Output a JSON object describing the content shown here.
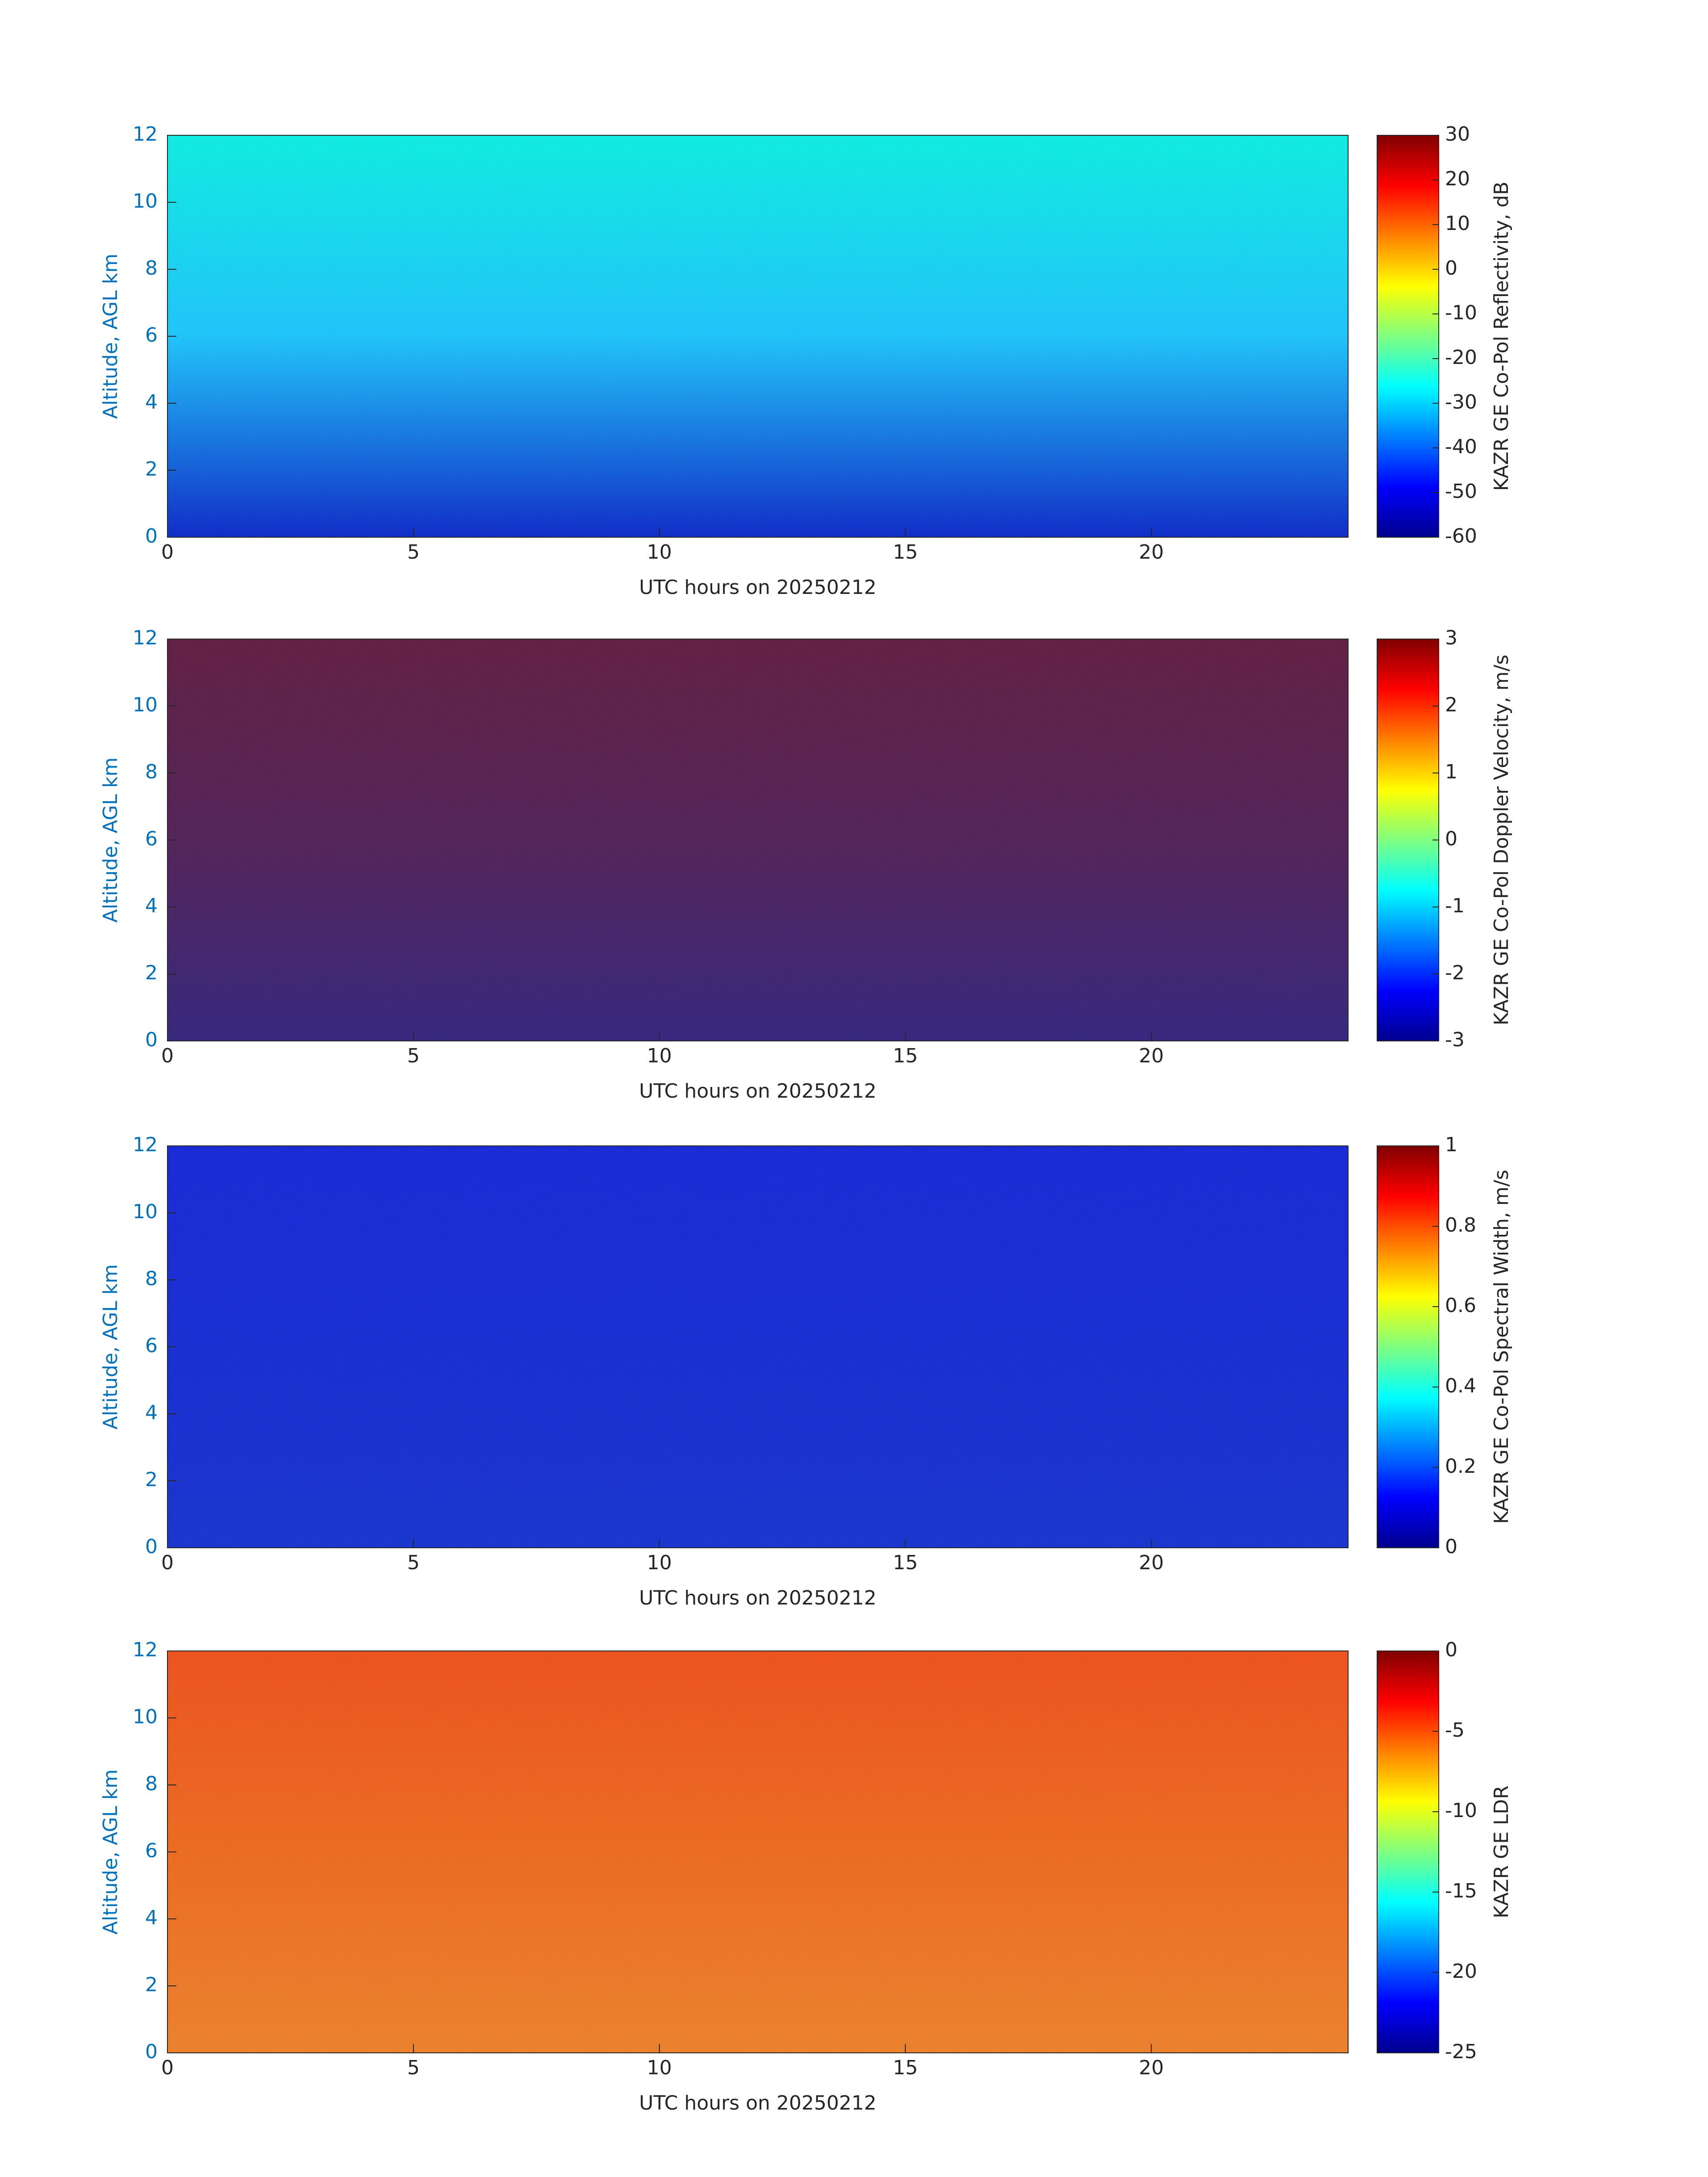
{
  "chart_data": [
    {
      "type": "heatmap",
      "xlabel": "UTC hours on 20250212",
      "ylabel": "Altitude, AGL km",
      "xlim": [
        0,
        24
      ],
      "xticks": [
        0,
        5,
        10,
        15,
        20
      ],
      "ylim": [
        0,
        12
      ],
      "yticks": [
        0,
        2,
        4,
        6,
        8,
        10,
        12
      ],
      "colorbar_label": "KAZR GE Co-Pol Reflectivity, dB",
      "colormap": "jet",
      "clim": [
        -60,
        30
      ],
      "cticks": [
        -60,
        -50,
        -40,
        -30,
        -20,
        -10,
        0,
        10,
        20,
        30
      ],
      "field_colors": [
        "#00f0e4",
        "#12c4ff",
        "#0020c8"
      ]
    },
    {
      "type": "heatmap",
      "xlabel": "UTC hours on 20250212",
      "ylabel": "Altitude, AGL km",
      "xlim": [
        0,
        24
      ],
      "xticks": [
        0,
        5,
        10,
        15,
        20
      ],
      "ylim": [
        0,
        12
      ],
      "yticks": [
        0,
        2,
        4,
        6,
        8,
        10,
        12
      ],
      "colorbar_label": "KAZR GE Co-Pol Doppler Velocity, m/s",
      "colormap": "jet",
      "clim": [
        -3,
        3
      ],
      "cticks": [
        -3,
        -2,
        -1,
        0,
        1,
        2,
        3
      ],
      "field_colors": [
        "#5a1238",
        "#4a1650",
        "#2a1a78"
      ]
    },
    {
      "type": "heatmap",
      "xlabel": "UTC hours on 20250212",
      "ylabel": "Altitude, AGL km",
      "xlim": [
        0,
        24
      ],
      "xticks": [
        0,
        5,
        10,
        15,
        20
      ],
      "ylim": [
        0,
        12
      ],
      "yticks": [
        0,
        2,
        4,
        6,
        8,
        10,
        12
      ],
      "colorbar_label": "KAZR GE Co-Pol Spectral Width, m/s",
      "colormap": "jet",
      "clim": [
        0,
        1
      ],
      "cticks": [
        0,
        0.2,
        0.4,
        0.6,
        0.8,
        1
      ],
      "field_colors": [
        "#0a1ed8",
        "#0a22d4",
        "#0a2ad0"
      ]
    },
    {
      "type": "heatmap",
      "xlabel": "UTC hours on 20250212",
      "ylabel": "Altitude, AGL km",
      "xlim": [
        0,
        24
      ],
      "xticks": [
        0,
        5,
        10,
        15,
        20
      ],
      "ylim": [
        0,
        12
      ],
      "yticks": [
        0,
        2,
        4,
        6,
        8,
        10,
        12
      ],
      "colorbar_label": "KAZR GE LDR",
      "colormap": "jet",
      "clim": [
        -25,
        0
      ],
      "cticks": [
        -25,
        -20,
        -15,
        -10,
        -5,
        0
      ],
      "field_colors": [
        "#f04a10",
        "#f06414",
        "#f07c20"
      ]
    }
  ]
}
